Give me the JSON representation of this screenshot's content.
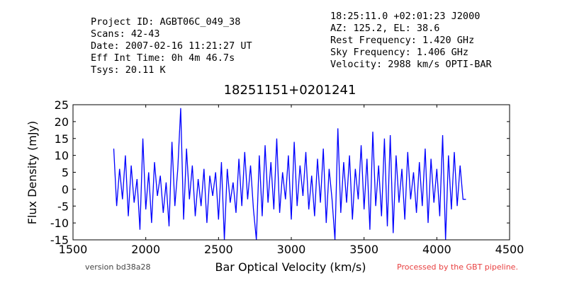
{
  "chart_data": {
    "type": "line",
    "title": "18251151+0201241",
    "header_left": [
      "Project ID: AGBT06C_049_38",
      "Scans: 42-43",
      "Date: 2007-02-16 11:21:27 UT",
      "Eff Int Time: 0h 4m 46.7s",
      "Tsys: 20.11 K"
    ],
    "header_right": [
      "18:25:11.0 +02:01:23 J2000",
      "AZ: 125.2, EL: 38.6",
      "Rest Frequency:   1.420 GHz",
      "Sky Frequency:    1.406 GHz",
      "Velocity: 2988 km/s OPTI-BAR"
    ],
    "xlabel": "Bar Optical Velocity (km/s)",
    "ylabel": "Flux Density (mJy)",
    "footer_left": "version bd38a28",
    "footer_right": "Processed by the GBT pipeline.",
    "xlim": [
      1500,
      4500
    ],
    "xticks": [
      1500,
      2000,
      2500,
      3000,
      3500,
      4000,
      4500
    ],
    "ylim": [
      -15,
      25
    ],
    "yticks": [
      -15,
      -10,
      -5,
      0,
      5,
      10,
      15,
      20,
      25
    ],
    "grid": false,
    "x": [
      1780,
      1800,
      1820,
      1840,
      1860,
      1880,
      1900,
      1920,
      1940,
      1960,
      1980,
      2000,
      2020,
      2040,
      2060,
      2080,
      2100,
      2120,
      2140,
      2160,
      2180,
      2200,
      2220,
      2240,
      2260,
      2280,
      2300,
      2320,
      2340,
      2360,
      2380,
      2400,
      2420,
      2440,
      2460,
      2480,
      2500,
      2520,
      2540,
      2560,
      2580,
      2600,
      2620,
      2640,
      2660,
      2680,
      2700,
      2720,
      2740,
      2760,
      2780,
      2800,
      2820,
      2840,
      2860,
      2880,
      2900,
      2920,
      2940,
      2960,
      2980,
      3000,
      3020,
      3040,
      3060,
      3080,
      3100,
      3120,
      3140,
      3160,
      3180,
      3200,
      3220,
      3240,
      3260,
      3280,
      3300,
      3320,
      3340,
      3360,
      3380,
      3400,
      3420,
      3440,
      3460,
      3480,
      3500,
      3520,
      3540,
      3560,
      3580,
      3600,
      3620,
      3640,
      3660,
      3680,
      3700,
      3720,
      3740,
      3760,
      3780,
      3800,
      3820,
      3840,
      3860,
      3880,
      3900,
      3920,
      3940,
      3960,
      3980,
      4000,
      4020,
      4040,
      4060,
      4080,
      4100,
      4120,
      4140,
      4160,
      4180,
      4200
    ],
    "series": [
      {
        "color": "#0000ff",
        "values": [
          12,
          -5,
          6,
          -3,
          10,
          -8,
          7,
          -4,
          3,
          -12,
          15,
          -6,
          5,
          -10,
          8,
          -2,
          4,
          -7,
          2,
          -11,
          14,
          -5,
          6,
          24,
          -9,
          12,
          -3,
          7,
          -8,
          3,
          -5,
          6,
          -10,
          4,
          -2,
          5,
          -9,
          8,
          -15,
          6,
          -4,
          2,
          -7,
          9,
          -5,
          11,
          -3,
          7,
          -6,
          -15,
          10,
          -8,
          13,
          -4,
          8,
          -6,
          15,
          -7,
          5,
          -3,
          10,
          -9,
          14,
          -5,
          7,
          -2,
          11,
          -6,
          4,
          -8,
          9,
          -4,
          12,
          -10,
          6,
          -3,
          -15,
          18,
          -7,
          8,
          -4,
          10,
          -9,
          6,
          -3,
          13,
          -6,
          9,
          -12,
          17,
          -5,
          7,
          -8,
          15,
          -11,
          16,
          -13,
          10,
          -4,
          6,
          -9,
          11,
          -3,
          5,
          -7,
          8,
          -5,
          12,
          -10,
          9,
          -4,
          6,
          -8,
          16,
          -15,
          10,
          -6,
          11,
          -5,
          7,
          -3,
          -3
        ]
      }
    ]
  }
}
